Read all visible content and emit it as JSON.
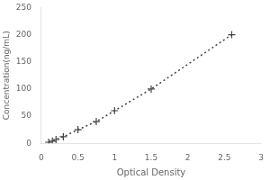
{
  "chart_data": {
    "type": "line",
    "x": [
      0.1,
      0.15,
      0.2,
      0.3,
      0.5,
      0.75,
      1.0,
      1.5,
      2.6
    ],
    "values": [
      2,
      4,
      7,
      12,
      25,
      40,
      60,
      100,
      200
    ],
    "xlabel": "Optical Density",
    "ylabel": "Concentration(ng/mL)",
    "xlim": [
      0,
      3
    ],
    "ylim": [
      0,
      250
    ],
    "xticks": [
      0,
      0.5,
      1,
      1.5,
      2,
      2.5,
      3
    ],
    "yticks": [
      0,
      50,
      100,
      150,
      200,
      250
    ],
    "color": "#444444",
    "marker": "plus",
    "line_style": "dotted",
    "grid": false
  }
}
